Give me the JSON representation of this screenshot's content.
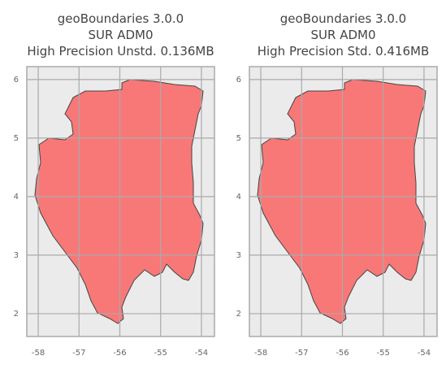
{
  "chart_data": [
    {
      "type": "map",
      "title": [
        "geoBoundaries 3.0.0",
        "SUR ADM0",
        "High Precision Unstd. 0.136MB"
      ],
      "xlim": [
        -58.28,
        -53.68
      ],
      "ylim": [
        1.61,
        6.22
      ],
      "xticks": [
        -58,
        -57,
        -56,
        -55,
        -54
      ],
      "yticks": [
        2,
        3,
        4,
        5,
        6
      ],
      "grid": true,
      "color": "#f87878"
    },
    {
      "type": "map",
      "title": [
        "geoBoundaries 3.0.0",
        "SUR ADM0",
        "High Precision Std. 0.416MB"
      ],
      "xlim": [
        -58.28,
        -53.68
      ],
      "ylim": [
        1.61,
        6.22
      ],
      "xticks": [
        -58,
        -57,
        -56,
        -55,
        -54
      ],
      "yticks": [
        2,
        3,
        4,
        5,
        6
      ],
      "grid": true,
      "color": "#f87878"
    }
  ]
}
